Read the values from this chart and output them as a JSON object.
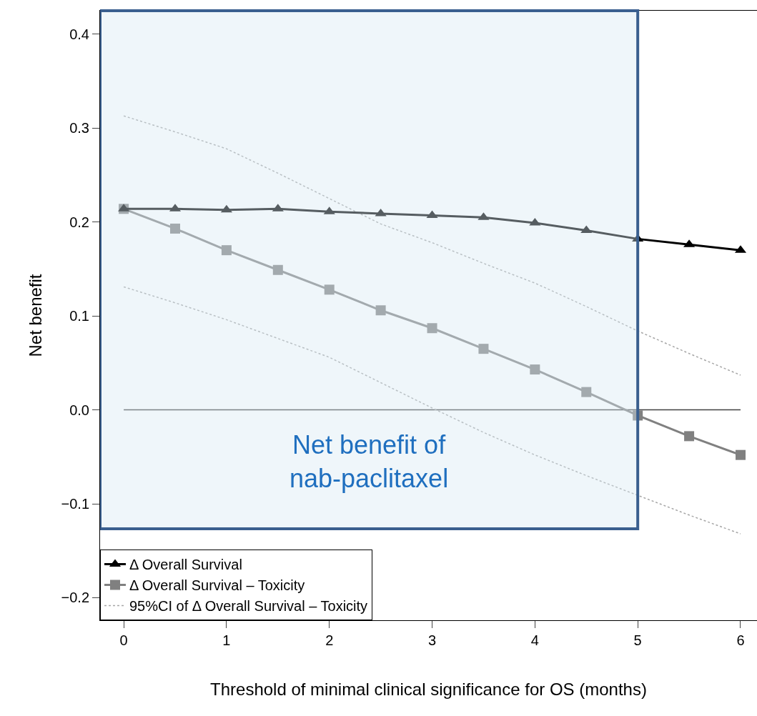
{
  "chart_data": {
    "type": "line",
    "xlabel": "Threshold of minimal clinical significance for OS (months)",
    "ylabel": "Net benefit",
    "x": [
      0,
      0.5,
      1,
      1.5,
      2,
      2.5,
      3,
      3.5,
      4,
      4.5,
      5,
      5.5,
      6
    ],
    "series": [
      {
        "name": "Δ Overall Survival",
        "color": "#000000",
        "marker": "triangle",
        "line_style": "solid",
        "values": [
          0.214,
          0.214,
          0.213,
          0.214,
          0.211,
          0.209,
          0.207,
          0.205,
          0.199,
          0.191,
          0.182,
          0.176,
          0.17
        ]
      },
      {
        "name": "Δ Overall Survival – Toxicity",
        "color": "#808080",
        "marker": "square",
        "line_style": "solid",
        "values": [
          0.214,
          0.193,
          0.17,
          0.149,
          0.128,
          0.106,
          0.087,
          0.065,
          0.043,
          0.019,
          -0.006,
          -0.028,
          -0.048
        ]
      },
      {
        "name": "95%CI of Δ Overall Survival – Toxicity",
        "color": "#a6a6a6",
        "marker": "none",
        "line_style": "dotted",
        "values": [
          0.313,
          0.296,
          0.278,
          0.252,
          0.225,
          0.198,
          0.178,
          0.156,
          0.135,
          0.11,
          0.084,
          0.06,
          0.037
        ]
      },
      {
        "color": "#a6a6a6",
        "marker": "none",
        "line_style": "dotted",
        "values": [
          0.131,
          0.114,
          0.096,
          0.076,
          0.056,
          0.029,
          0.002,
          -0.024,
          -0.048,
          -0.07,
          -0.091,
          -0.112,
          -0.132
        ]
      }
    ],
    "xlim": [
      -0.23,
      6.16
    ],
    "xticks": [
      0,
      1,
      2,
      3,
      4,
      5,
      6
    ],
    "ylim": [
      -0.224,
      0.425
    ],
    "yticks": [
      {
        "value": -0.2,
        "label": "−0.2"
      },
      {
        "value": -0.1,
        "label": "−0.1"
      },
      {
        "value": 0,
        "label": "0.0"
      },
      0.1,
      0.2,
      0.3,
      0.4
    ],
    "ref_lines": [
      {
        "axis": "y",
        "value": 0,
        "color": "#404040",
        "line_style": "solid"
      }
    ],
    "bands": [
      {
        "axis": "x",
        "from": -0.23,
        "to": 5,
        "label": "Net benefit of\nnab-paclitaxel",
        "color": "#d6e8f2"
      }
    ],
    "grid": false,
    "legend": "bottom left"
  }
}
